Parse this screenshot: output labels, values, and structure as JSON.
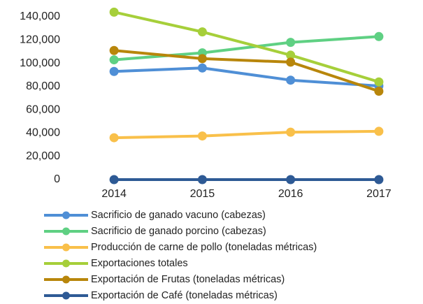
{
  "chart_data": {
    "type": "line",
    "categories": [
      "2014",
      "2015",
      "2016",
      "2017"
    ],
    "ylim": [
      0,
      140000
    ],
    "yticks": [
      {
        "value": 0,
        "label": "0"
      },
      {
        "value": 20000,
        "label": "20,000"
      },
      {
        "value": 40000,
        "label": "40,000"
      },
      {
        "value": 60000,
        "label": "60,000"
      },
      {
        "value": 80000,
        "label": "80,000"
      },
      {
        "value": 100000,
        "label": "100,000"
      },
      {
        "value": 120000,
        "label": "120,000"
      },
      {
        "value": 140000,
        "label": "140,000"
      }
    ],
    "series": [
      {
        "name": "Sacrificio de ganado vacuno (cabezas)",
        "color": "#4f8fd6",
        "values": [
          93000,
          96000,
          85500,
          80500
        ]
      },
      {
        "name": "Sacrificio de ganado porcino (cabezas)",
        "color": "#5fd083",
        "values": [
          103000,
          109000,
          118000,
          123000
        ]
      },
      {
        "name": "Producción de carne de pollo (toneladas métricas)",
        "color": "#f9c04a",
        "values": [
          36000,
          37500,
          40800,
          41500
        ]
      },
      {
        "name": "Exportaciones totales",
        "color": "#a6cf3a",
        "values": [
          144000,
          127000,
          107000,
          84000
        ]
      },
      {
        "name": "Exportación de Frutas (toneladas métricas)",
        "color": "#b8860b",
        "values": [
          111000,
          104000,
          101000,
          76000
        ]
      },
      {
        "name": "Exportación de Café (toneladas métricas)",
        "color": "#2e5a95",
        "values": [
          0,
          0,
          0,
          0
        ]
      }
    ]
  }
}
